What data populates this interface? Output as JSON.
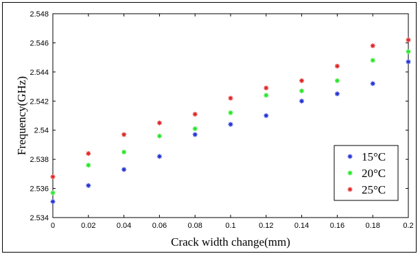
{
  "chart_data": {
    "type": "scatter",
    "xlabel": "Crack width change(mm)",
    "ylabel": "Frequency(GHz)",
    "xlim": [
      0,
      0.2
    ],
    "ylim": [
      2.534,
      2.548
    ],
    "xticks": [
      "0",
      "0.02",
      "0.04",
      "0.06",
      "0.08",
      "0.1",
      "0.12",
      "0.14",
      "0.16",
      "0.18",
      "0.2"
    ],
    "yticks": [
      "2.534",
      "2.536",
      "2.538",
      "2.54",
      "2.542",
      "2.544",
      "2.546",
      "2.548"
    ],
    "grid": false,
    "legend_position": "bottom-right",
    "marker": "asterisk",
    "x": [
      0,
      0.02,
      0.04,
      0.06,
      0.08,
      0.1,
      0.12,
      0.14,
      0.16,
      0.18,
      0.2
    ],
    "series": [
      {
        "name": "15°C",
        "color": "#1f2fd6",
        "values": [
          2.5351,
          2.5362,
          2.5373,
          2.5382,
          2.5397,
          2.5404,
          2.541,
          2.542,
          2.5425,
          2.5432,
          2.5447
        ]
      },
      {
        "name": "20°C",
        "color": "#22e622",
        "values": [
          2.5357,
          2.5376,
          2.5385,
          2.5396,
          2.5401,
          2.5412,
          2.5424,
          2.5427,
          2.5434,
          2.5448,
          2.5454
        ]
      },
      {
        "name": "25°C",
        "color": "#e02222",
        "values": [
          2.5368,
          2.5384,
          2.5397,
          2.5405,
          2.5411,
          2.5422,
          2.5429,
          2.5434,
          2.5444,
          2.5458,
          2.5462
        ]
      }
    ]
  }
}
